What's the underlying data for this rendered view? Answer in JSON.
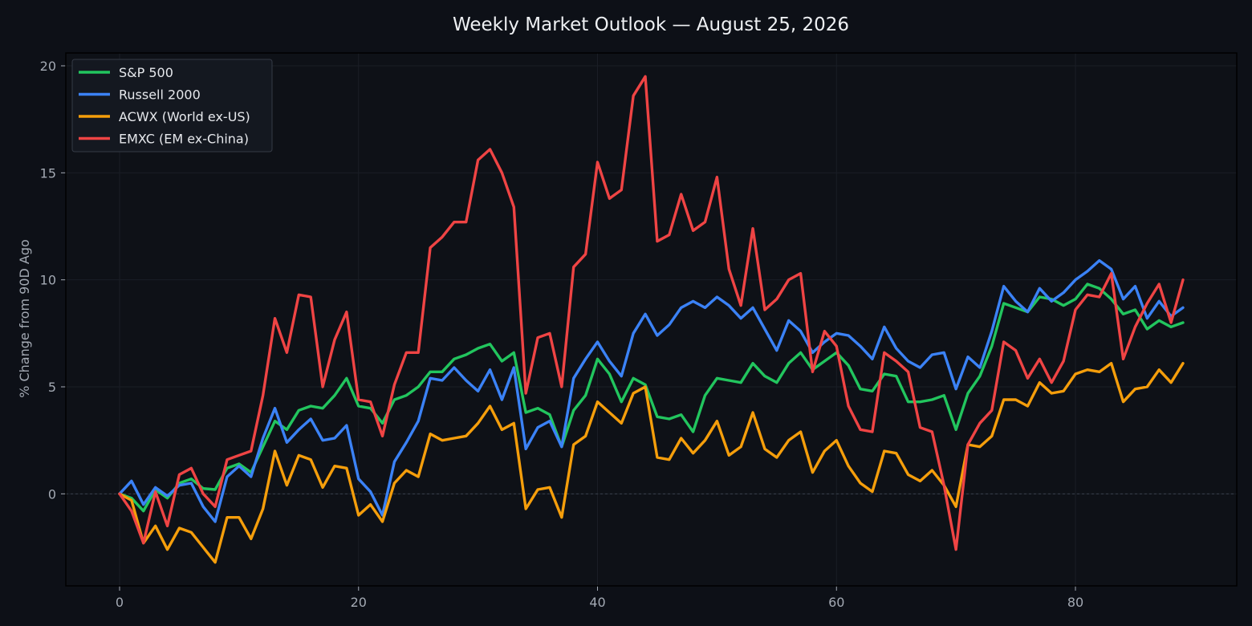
{
  "chart_data": {
    "type": "line",
    "title": "Weekly Market Outlook — August 25, 2026",
    "xlabel": "",
    "ylabel": "% Change from 90D Ago",
    "xlim": [
      -4.5,
      93.5
    ],
    "ylim": [
      -4.3,
      20.6
    ],
    "xticks": [
      0,
      20,
      40,
      60,
      80
    ],
    "yticks": [
      0,
      5,
      10,
      15,
      20
    ],
    "grid": true,
    "zero_line": true,
    "legend": "top-left",
    "colors": {
      "background": "#0d1017",
      "plot_background": "#0e1117",
      "axis": "#000000",
      "grid": "#1a1e26",
      "zero_line": "#3a404b"
    },
    "series": [
      {
        "name": "S&P 500",
        "color": "#22c55e",
        "values": [
          0,
          -0.2,
          -0.8,
          0.2,
          -0.2,
          0.5,
          0.7,
          0.25,
          0.2,
          1.2,
          1.4,
          1.0,
          2.2,
          3.4,
          3.0,
          3.9,
          4.1,
          4.0,
          4.6,
          5.4,
          4.1,
          4.0,
          3.3,
          4.4,
          4.6,
          5.0,
          5.7,
          5.7,
          6.3,
          6.5,
          6.8,
          7.0,
          6.2,
          6.6,
          3.8,
          4.0,
          3.7,
          2.2,
          3.9,
          4.6,
          6.3,
          5.6,
          4.3,
          5.4,
          5.1,
          3.6,
          3.5,
          3.7,
          2.9,
          4.6,
          5.4,
          5.3,
          5.2,
          6.1,
          5.5,
          5.2,
          6.1,
          6.6,
          5.8,
          6.2,
          6.6,
          6.0,
          4.9,
          4.8,
          5.6,
          5.5,
          4.3,
          4.3,
          4.4,
          4.6,
          3.0,
          4.7,
          5.5,
          6.9,
          8.9,
          8.7,
          8.5,
          9.2,
          9.1,
          8.8,
          9.1,
          9.8,
          9.6,
          9.1,
          8.4,
          8.6,
          7.7,
          8.1,
          7.8,
          8.0
        ]
      },
      {
        "name": "Russell 2000",
        "color": "#3b82f6",
        "values": [
          0,
          0.6,
          -0.5,
          0.3,
          -0.1,
          0.4,
          0.5,
          -0.6,
          -1.3,
          0.8,
          1.3,
          0.8,
          2.6,
          4.0,
          2.4,
          3.0,
          3.5,
          2.5,
          2.6,
          3.2,
          0.7,
          0.1,
          -1.0,
          1.5,
          2.4,
          3.4,
          5.4,
          5.3,
          5.9,
          5.3,
          4.8,
          5.8,
          4.4,
          5.9,
          2.1,
          3.1,
          3.4,
          2.2,
          5.4,
          6.3,
          7.1,
          6.2,
          5.5,
          7.5,
          8.4,
          7.4,
          7.9,
          8.7,
          9.0,
          8.7,
          9.2,
          8.8,
          8.2,
          8.7,
          7.7,
          6.7,
          8.1,
          7.6,
          6.6,
          7.1,
          7.5,
          7.4,
          6.9,
          6.3,
          7.8,
          6.8,
          6.2,
          5.9,
          6.5,
          6.6,
          4.9,
          6.4,
          5.9,
          7.6,
          9.7,
          9.0,
          8.5,
          9.6,
          9.0,
          9.4,
          10.0,
          10.4,
          10.9,
          10.5,
          9.1,
          9.7,
          8.2,
          9.0,
          8.3,
          8.7
        ]
      },
      {
        "name": "ACWX (World ex-US)",
        "color": "#f59e0b",
        "values": [
          0,
          -0.3,
          -2.3,
          -1.5,
          -2.6,
          -1.6,
          -1.8,
          -2.5,
          -3.2,
          -1.1,
          -1.1,
          -2.1,
          -0.7,
          2.0,
          0.4,
          1.8,
          1.6,
          0.3,
          1.3,
          1.2,
          -1.0,
          -0.5,
          -1.3,
          0.5,
          1.1,
          0.8,
          2.8,
          2.5,
          2.6,
          2.7,
          3.3,
          4.1,
          3.0,
          3.3,
          -0.7,
          0.2,
          0.3,
          -1.1,
          2.3,
          2.7,
          4.3,
          3.8,
          3.3,
          4.7,
          5.0,
          1.7,
          1.6,
          2.6,
          1.9,
          2.5,
          3.4,
          1.8,
          2.2,
          3.8,
          2.1,
          1.7,
          2.5,
          2.9,
          1.0,
          2.0,
          2.5,
          1.3,
          0.5,
          0.1,
          2.0,
          1.9,
          0.9,
          0.6,
          1.1,
          0.4,
          -0.6,
          2.3,
          2.2,
          2.7,
          4.4,
          4.4,
          4.1,
          5.2,
          4.7,
          4.8,
          5.6,
          5.8,
          5.7,
          6.1,
          4.3,
          4.9,
          5.0,
          5.8,
          5.2,
          6.1
        ]
      },
      {
        "name": "EMXC (EM ex-China)",
        "color": "#ef4444",
        "values": [
          0,
          -0.8,
          -2.3,
          0.1,
          -1.5,
          0.9,
          1.2,
          0.0,
          -0.6,
          1.6,
          1.8,
          2.0,
          4.6,
          8.2,
          6.6,
          9.3,
          9.2,
          5.0,
          7.2,
          8.5,
          4.4,
          4.3,
          2.7,
          5.1,
          6.6,
          6.6,
          11.5,
          12.0,
          12.7,
          12.7,
          15.6,
          16.1,
          15.0,
          13.4,
          4.7,
          7.3,
          7.5,
          5.0,
          10.6,
          11.2,
          15.5,
          13.8,
          14.2,
          18.6,
          19.5,
          11.8,
          12.1,
          14.0,
          12.3,
          12.7,
          14.8,
          10.5,
          8.8,
          12.4,
          8.6,
          9.1,
          10.0,
          10.3,
          5.7,
          7.6,
          6.9,
          4.1,
          3.0,
          2.9,
          6.6,
          6.2,
          5.7,
          3.1,
          2.9,
          0.4,
          -2.6,
          2.3,
          3.3,
          3.9,
          7.1,
          6.7,
          5.4,
          6.3,
          5.2,
          6.2,
          8.6,
          9.3,
          9.2,
          10.3,
          6.3,
          7.8,
          8.9,
          9.8,
          8.0,
          10.0
        ]
      }
    ]
  }
}
